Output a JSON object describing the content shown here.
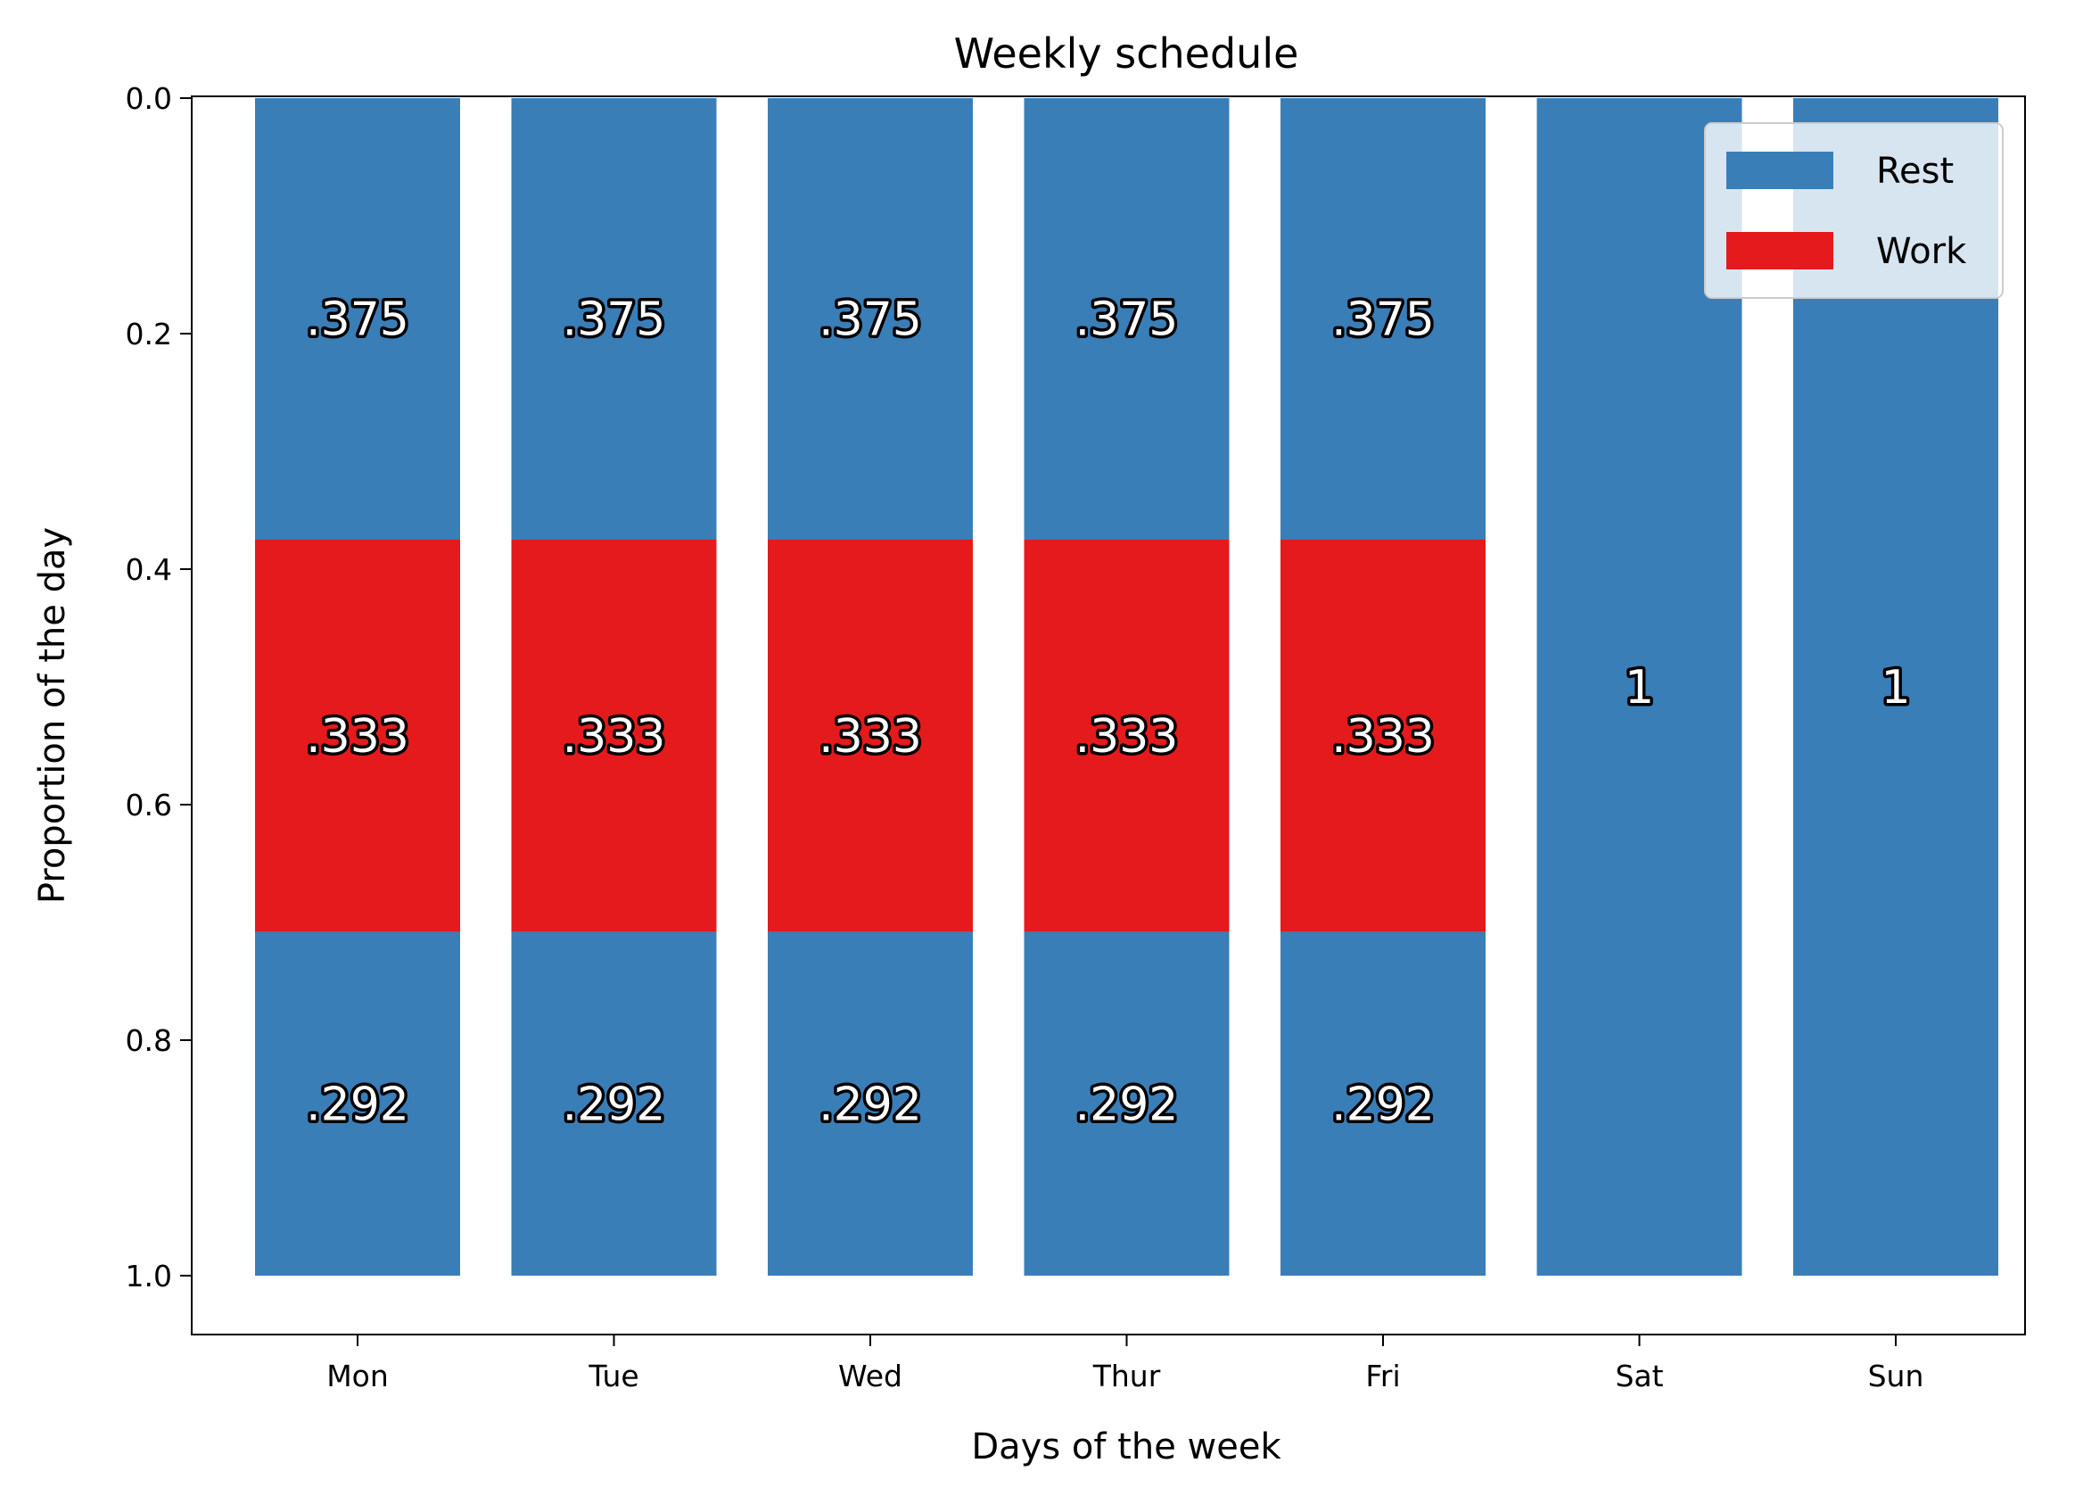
{
  "chart_data": {
    "type": "bar",
    "stacked": true,
    "title": "Weekly schedule",
    "xlabel": "Days of the week",
    "ylabel": "Proportion of the day",
    "categories": [
      "Mon",
      "Tue",
      "Wed",
      "Thur",
      "Fri",
      "Sat",
      "Sun"
    ],
    "ylim": [
      1.0,
      0.0
    ],
    "y_inverted": true,
    "yticks": [
      "0.0",
      "0.2",
      "0.4",
      "0.6",
      "0.8",
      "1.0"
    ],
    "segments": [
      {
        "series": "Rest",
        "values": [
          0.375,
          0.375,
          0.375,
          0.375,
          0.375,
          1,
          1
        ],
        "labels": [
          ".375",
          ".375",
          ".375",
          ".375",
          ".375",
          "1",
          "1"
        ]
      },
      {
        "series": "Work",
        "values": [
          0.333,
          0.333,
          0.333,
          0.333,
          0.333,
          0,
          0
        ],
        "labels": [
          ".333",
          ".333",
          ".333",
          ".333",
          ".333",
          "",
          ""
        ]
      },
      {
        "series": "Rest",
        "values": [
          0.292,
          0.292,
          0.292,
          0.292,
          0.292,
          0,
          0
        ],
        "labels": [
          ".292",
          ".292",
          ".292",
          ".292",
          ".292",
          "",
          ""
        ]
      }
    ],
    "legend": {
      "position": "top-right",
      "entries": [
        {
          "name": "Rest",
          "color": "#3a7eb8"
        },
        {
          "name": "Work",
          "color": "#e41a1c"
        }
      ]
    },
    "grid": false
  }
}
